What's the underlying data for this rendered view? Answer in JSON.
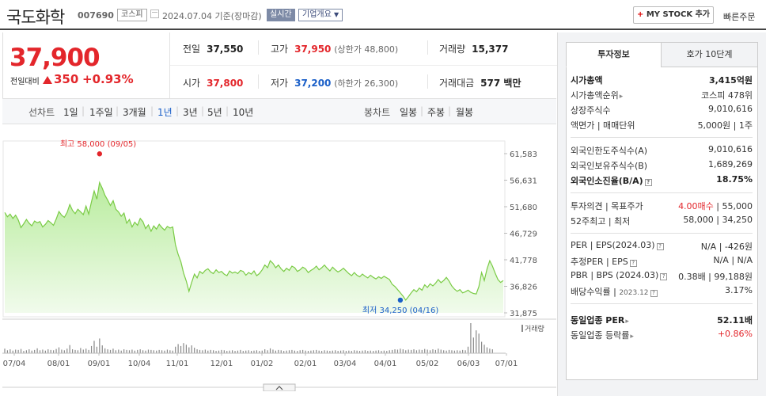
{
  "header": {
    "name": "국도화학",
    "code": "007690",
    "market": "코스피",
    "date": "2024.07.04 기준(장마감)",
    "realtime": "실시간",
    "company_info": "기업개요",
    "my_stock": "MY STOCK 추가",
    "quick_order": "빠른주문"
  },
  "price": {
    "current": "37,900",
    "change_label": "전일대비",
    "change": "350",
    "change_pct": "+0.93%",
    "prev_label": "전일",
    "prev": "37,550",
    "high_label": "고가",
    "high": "37,950",
    "upper_limit": "(상한가 48,800)",
    "volume_label": "거래량",
    "volume": "15,377",
    "open_label": "시가",
    "open": "37,800",
    "low_label": "저가",
    "low": "37,200",
    "lower_limit": "(하한가 26,300)",
    "amount_label": "거래대금",
    "amount": "577 백만"
  },
  "tabs": {
    "line_label": "선차트",
    "line": [
      "1일",
      "1주일",
      "3개월",
      "1년",
      "3년",
      "5년",
      "10년"
    ],
    "active": "1년",
    "candle_label": "봉차트",
    "candle": [
      "일봉",
      "주봉",
      "월봉"
    ]
  },
  "chart_data": {
    "type": "area",
    "y_ticks": [
      "61,583",
      "56,631",
      "51,680",
      "46,729",
      "41,778",
      "36,826",
      "31,875"
    ],
    "ylim": [
      31875,
      61583
    ],
    "x_ticks": [
      "07/04",
      "08/01",
      "09/01",
      "10/04",
      "11/01",
      "12/01",
      "01/02",
      "02/01",
      "03/04",
      "04/01",
      "05/02",
      "06/03",
      "07/01"
    ],
    "max_label": "최고 58,000 (09/05)",
    "min_label": "최저 34,250 (04/16)",
    "volume_legend": "거래량",
    "prices": [
      50600,
      49800,
      50300,
      49500,
      50100,
      49200,
      47800,
      48500,
      49300,
      48600,
      48100,
      49000,
      48700,
      48900,
      47900,
      48400,
      49100,
      48700,
      48200,
      49400,
      50800,
      50100,
      49700,
      50600,
      52100,
      51000,
      50400,
      51200,
      50700,
      50200,
      51800,
      50300,
      52600,
      54600,
      53100,
      56200,
      55100,
      53800,
      52900,
      51900,
      52800,
      51200,
      50700,
      49900,
      50500,
      48600,
      49300,
      47900,
      48800,
      48200,
      49500,
      48900,
      47600,
      48300,
      47100,
      48100,
      47500,
      48400,
      47800,
      47300,
      48000,
      47700,
      47900,
      44600,
      42800,
      41400,
      39300,
      37800,
      35900,
      37600,
      39100,
      38400,
      39600,
      39200,
      39800,
      40100,
      39500,
      39200,
      39900,
      39400,
      39600,
      39100,
      38800,
      39700,
      39300,
      39500,
      39200,
      39800,
      39600,
      38900,
      39400,
      39100,
      39700,
      38800,
      39200,
      39900,
      40800,
      40300,
      41600,
      41100,
      40300,
      40800,
      40100,
      39600,
      40200,
      39800,
      40600,
      40300,
      39600,
      39900,
      40400,
      40100,
      39400,
      39800,
      40100,
      40600,
      39900,
      40300,
      40800,
      40200,
      39700,
      40400,
      39900,
      39500,
      39800,
      40200,
      39700,
      39200,
      38800,
      39400,
      38900,
      38600,
      39100,
      38700,
      38400,
      38900,
      38500,
      38200,
      38600,
      38300,
      38700,
      38400,
      38100,
      37200,
      36800,
      36200,
      35600,
      35000,
      34250,
      34900,
      35600,
      36200,
      35800,
      36500,
      36100,
      37100,
      36600,
      37300,
      36900,
      37400,
      38100,
      37500,
      37900,
      38500,
      37800,
      36900,
      36300,
      35900,
      36200,
      35600,
      35800,
      36100,
      35700,
      35500,
      35400,
      36800,
      39400,
      37900,
      40100,
      41600,
      40600,
      39300,
      38100,
      37550,
      37900
    ],
    "max_index": 35,
    "min_index": 146,
    "volumes": [
      14,
      9,
      12,
      8,
      11,
      10,
      13,
      7,
      9,
      12,
      8,
      10,
      15,
      9,
      11,
      8,
      12,
      10,
      9,
      13,
      18,
      11,
      9,
      14,
      25,
      12,
      10,
      9,
      16,
      11,
      14,
      10,
      22,
      38,
      20,
      45,
      24,
      15,
      12,
      10,
      14,
      9,
      11,
      8,
      12,
      10,
      9,
      11,
      8,
      10,
      12,
      9,
      8,
      11,
      10,
      9,
      8,
      10,
      9,
      8,
      11,
      9,
      8,
      20,
      28,
      22,
      31,
      26,
      18,
      24,
      17,
      12,
      10,
      9,
      11,
      8,
      10,
      9,
      7,
      8,
      10,
      9,
      7,
      8,
      9,
      7,
      8,
      10,
      7,
      8,
      9,
      7,
      8,
      9,
      7,
      8,
      12,
      9,
      15,
      11,
      8,
      10,
      9,
      7,
      8,
      9,
      10,
      8,
      7,
      9,
      10,
      8,
      7,
      8,
      9,
      10,
      8,
      7,
      9,
      8,
      7,
      8,
      9,
      7,
      8,
      9,
      7,
      8,
      7,
      9,
      8,
      7,
      8,
      9,
      7,
      8,
      7,
      8,
      9,
      7,
      8,
      7,
      9,
      10,
      12,
      11,
      14,
      12,
      9,
      11,
      10,
      12,
      9,
      11,
      10,
      13,
      11,
      9,
      12,
      10,
      14,
      11,
      9,
      8,
      10,
      9,
      8,
      9,
      8,
      10,
      9,
      20,
      92,
      48,
      70,
      60,
      35,
      26,
      18,
      14,
      12
    ]
  },
  "invest": {
    "tab_on": "투자정보",
    "tab_off": "호가 10단계",
    "market_cap_label": "시가총액",
    "market_cap": "3,415억원",
    "cap_rank_label": "시가총액순위",
    "cap_rank": "코스피 478위",
    "shares_label": "상장주식수",
    "shares": "9,010,616",
    "par_label": "액면가 | 매매단위",
    "par": "5,000원 | 1주",
    "foreign_limit_label": "외국인한도주식수(A)",
    "foreign_limit": "9,010,616",
    "foreign_hold_label": "외국인보유주식수(B)",
    "foreign_hold": "1,689,269",
    "foreign_ratio_label": "외국인소진율(B/A)",
    "foreign_ratio": "18.75%",
    "opinion_label": "투자의견 | 목표주가",
    "opinion": "4.00매수",
    "target": "55,000",
    "week52_label": "52주최고 | 최저",
    "week52": "58,000 | 34,250",
    "per_label": "PER | EPS(2024.03)",
    "per": "N/A | -426원",
    "est_per_label": "추정PER | EPS",
    "est_per": "N/A | N/A",
    "pbr_label": "PBR | BPS (2024.03)",
    "pbr": "0.38배 | 99,188원",
    "div_label": "배당수익률",
    "div_date": "2023.12",
    "div": "3.17%",
    "sector_per_label": "동일업종 PER",
    "sector_per": "52.11배",
    "sector_chg_label": "동일업종 등락률",
    "sector_chg": "+0.86%"
  }
}
